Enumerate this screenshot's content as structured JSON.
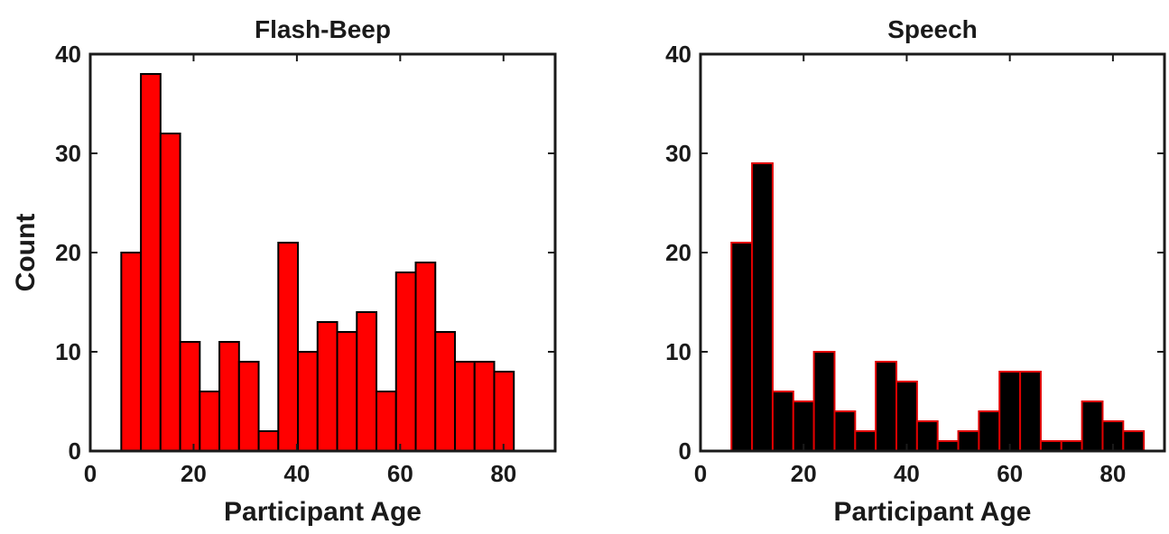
{
  "chart_data": [
    {
      "type": "histogram",
      "title": "Flash-Beep",
      "xlabel": "Participant Age",
      "ylabel": "Count",
      "bins": [
        6,
        9.8,
        13.6,
        17.4,
        21.2,
        25,
        28.8,
        32.6,
        36.4,
        40.2,
        44,
        47.8,
        51.6,
        55.4,
        59.2,
        63,
        66.8,
        70.6,
        74.4,
        78.2,
        82
      ],
      "values": [
        20,
        38,
        32,
        11,
        6,
        11,
        9,
        2,
        21,
        10,
        13,
        12,
        14,
        6,
        18,
        19,
        12,
        9,
        9,
        8
      ],
      "color": "#ff0000",
      "edge_color": "#000000",
      "xlim": [
        0,
        90
      ],
      "xticks": [
        0,
        20,
        40,
        60,
        80
      ],
      "ylim": [
        0,
        40
      ],
      "yticks": [
        0,
        10,
        20,
        30,
        40
      ]
    },
    {
      "type": "histogram",
      "title": "Speech",
      "xlabel": "Participant Age",
      "bins": [
        6,
        10,
        14,
        18,
        22,
        26,
        30,
        34,
        38,
        42,
        46,
        50,
        54,
        58,
        62,
        66,
        70,
        74,
        78,
        82,
        86
      ],
      "values": [
        21,
        29,
        6,
        5,
        10,
        4,
        2,
        9,
        7,
        3,
        1,
        2,
        4,
        8,
        8,
        1,
        1,
        5,
        3,
        2
      ],
      "color": "#000000",
      "edge_color": "#e00000",
      "xlim": [
        0,
        90
      ],
      "xticks": [
        0,
        20,
        40,
        60,
        80
      ],
      "ylim": [
        0,
        40
      ],
      "yticks": [
        0,
        10,
        20,
        30,
        40
      ]
    }
  ]
}
